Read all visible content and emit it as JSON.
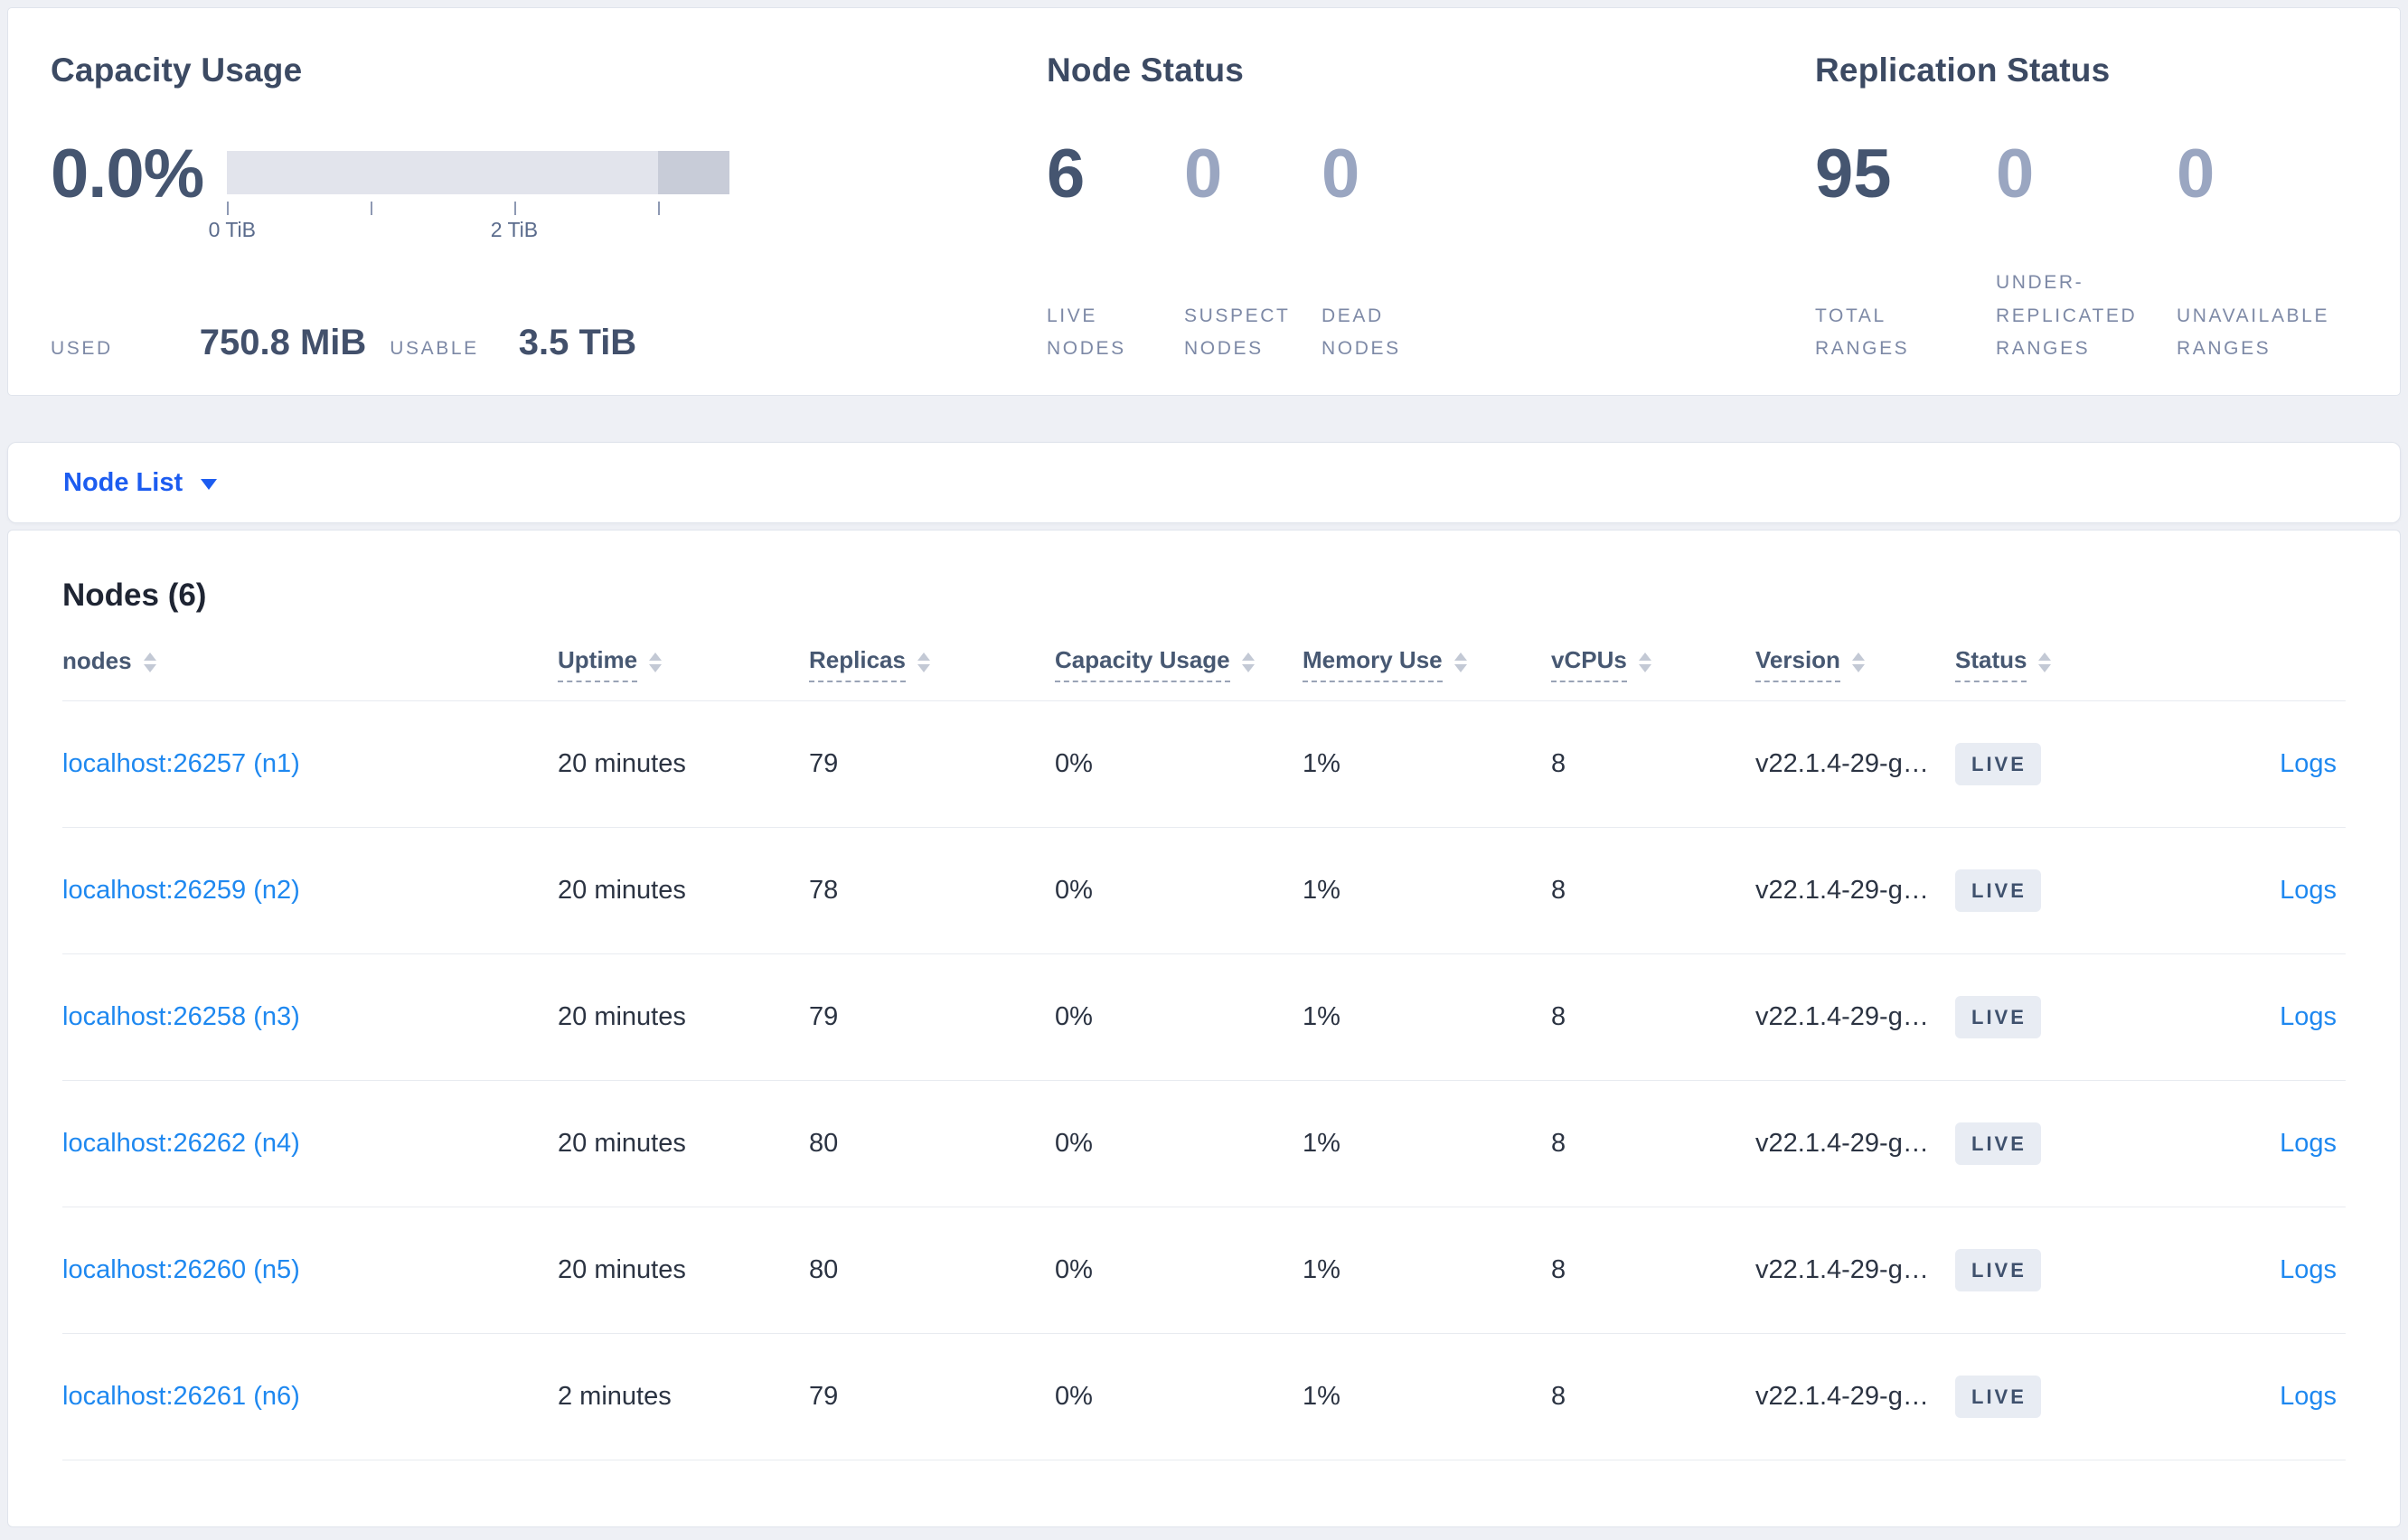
{
  "colors": {
    "page_background": "#eef0f5",
    "card_background": "#ffffff",
    "title_text": "#3c4a63",
    "stat_number": "#455570",
    "stat_number_muted": "#9aa6c1",
    "muted_label": "#7d89a6",
    "capacity_bar_light": "#e2e4ec",
    "capacity_bar_dark": "#c8ccd8",
    "selector_blue": "#1c5cf0",
    "link_blue": "#1e88f0",
    "badge_background": "#e8ecf3",
    "badge_text": "#3f516d"
  },
  "summary": {
    "capacity": {
      "title": "Capacity Usage",
      "percent": "0.0%",
      "tick_labels": {
        "zero": "0 TiB",
        "two": "2 TiB"
      },
      "used_label": "USED",
      "used_value": "750.8 MiB",
      "usable_label": "USABLE",
      "usable_value": "3.5 TiB"
    },
    "node_status": {
      "title": "Node Status",
      "stats": [
        {
          "value": "6",
          "label": "LIVE NODES"
        },
        {
          "value": "0",
          "label": "SUSPECT NODES"
        },
        {
          "value": "0",
          "label": "DEAD NODES"
        }
      ]
    },
    "replication": {
      "title": "Replication Status",
      "stats": [
        {
          "value": "95",
          "label": "TOTAL RANGES"
        },
        {
          "value": "0",
          "label": "UNDER-REPLICATED RANGES"
        },
        {
          "value": "0",
          "label": "UNAVAILABLE RANGES"
        }
      ]
    }
  },
  "view_selector": {
    "label": "Node List"
  },
  "table": {
    "title": "Nodes (6)",
    "columns": [
      {
        "label": "nodes"
      },
      {
        "label": "Uptime"
      },
      {
        "label": "Replicas"
      },
      {
        "label": "Capacity Usage"
      },
      {
        "label": "Memory Use"
      },
      {
        "label": "vCPUs"
      },
      {
        "label": "Version"
      },
      {
        "label": "Status"
      }
    ],
    "rows": [
      {
        "node": "localhost:26257 (n1)",
        "uptime": "20 minutes",
        "replicas": "79",
        "capacity": "0%",
        "memory": "1%",
        "vcpus": "8",
        "version": "v22.1.4-29-g…",
        "status": "LIVE",
        "logs": "Logs"
      },
      {
        "node": "localhost:26259 (n2)",
        "uptime": "20 minutes",
        "replicas": "78",
        "capacity": "0%",
        "memory": "1%",
        "vcpus": "8",
        "version": "v22.1.4-29-g…",
        "status": "LIVE",
        "logs": "Logs"
      },
      {
        "node": "localhost:26258 (n3)",
        "uptime": "20 minutes",
        "replicas": "79",
        "capacity": "0%",
        "memory": "1%",
        "vcpus": "8",
        "version": "v22.1.4-29-g…",
        "status": "LIVE",
        "logs": "Logs"
      },
      {
        "node": "localhost:26262 (n4)",
        "uptime": "20 minutes",
        "replicas": "80",
        "capacity": "0%",
        "memory": "1%",
        "vcpus": "8",
        "version": "v22.1.4-29-g…",
        "status": "LIVE",
        "logs": "Logs"
      },
      {
        "node": "localhost:26260 (n5)",
        "uptime": "20 minutes",
        "replicas": "80",
        "capacity": "0%",
        "memory": "1%",
        "vcpus": "8",
        "version": "v22.1.4-29-g…",
        "status": "LIVE",
        "logs": "Logs"
      },
      {
        "node": "localhost:26261 (n6)",
        "uptime": "2 minutes",
        "replicas": "79",
        "capacity": "0%",
        "memory": "1%",
        "vcpus": "8",
        "version": "v22.1.4-29-g…",
        "status": "LIVE",
        "logs": "Logs"
      }
    ]
  }
}
